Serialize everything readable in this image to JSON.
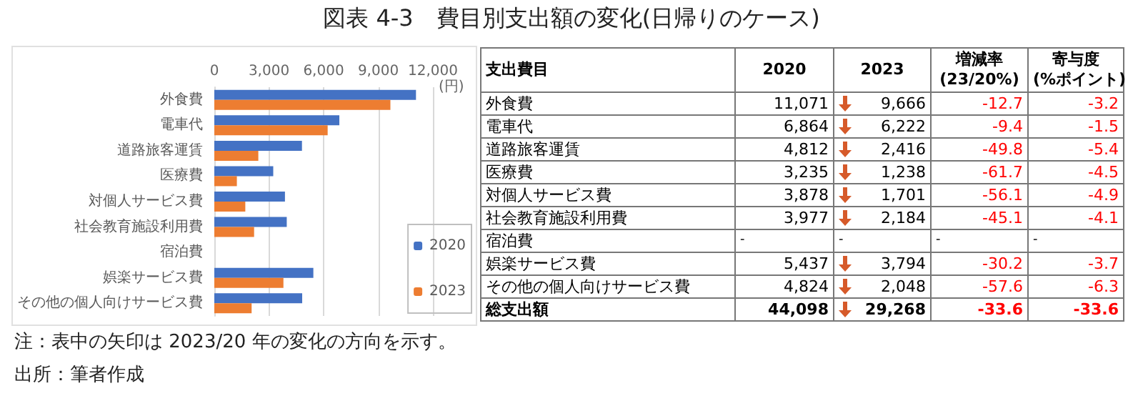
{
  "chart_data": [
    {
      "type": "bar",
      "orientation": "horizontal",
      "title": "図表 4-3　費目別支出額の変化(日帰りのケース)",
      "annotations": [
        "注：表中の矢印は 2023/20 年の変化の方向を示す。",
        "出所：筆者作成"
      ],
      "categories": [
        "外食費",
        "電車代",
        "道路旅客運賃",
        "医療費",
        "対個人サービス費",
        "社会教育施設利用費",
        "宿泊費",
        "娯楽サービス費",
        "その他の個人向けサービス費"
      ],
      "series": [
        {
          "name": "2020",
          "color": "#4472c4",
          "values": [
            11071,
            6864,
            4812,
            3235,
            3878,
            3977,
            null,
            5437,
            4824
          ]
        },
        {
          "name": "2023",
          "color": "#ed7d31",
          "values": [
            9666,
            6222,
            2416,
            1238,
            1701,
            2184,
            null,
            3794,
            2048
          ]
        }
      ],
      "xlim": [
        0,
        12000
      ],
      "xticks": [
        0,
        {
          "value": 3000,
          "label": "3,000"
        },
        {
          "value": 6000,
          "label": "6,000"
        },
        {
          "value": 9000,
          "label": "9,000"
        },
        {
          "value": 12000,
          "label": "12,000"
        }
      ],
      "xlabel": "(円)",
      "grid": "x",
      "legend": "bottom right"
    },
    {
      "type": "other",
      "ylabel": "支出費目",
      "categories": [
        "外食費",
        "電車代",
        "道路旅客運賃",
        "医療費",
        "対個人サービス費",
        "社会教育施設利用費",
        "宿泊費",
        "娯楽サービス費",
        "その他の個人向けサービス費",
        "総支出額"
      ],
      "series": [
        {
          "name": "2020",
          "values": [
            11071,
            6864,
            4812,
            3235,
            3878,
            3977,
            null,
            5437,
            4824,
            44098
          ],
          "value_labels": [
            "11,071",
            "6,864",
            "4,812",
            "3,235",
            "3,878",
            "3,977",
            "-",
            "5,437",
            "4,824",
            "44,098"
          ]
        },
        {
          "name": "2023",
          "values": [
            9666,
            6222,
            2416,
            1238,
            1701,
            2184,
            null,
            3794,
            2048,
            29268
          ],
          "value_labels": [
            "9,666",
            "6,222",
            "2,416",
            "1,238",
            "1,701",
            "2,184",
            "-",
            "3,794",
            "2,048",
            "29,268"
          ]
        },
        {
          "name": "増減率 (23/20%)",
          "values": [
            -12.7,
            -9.4,
            -49.8,
            -61.7,
            -56.1,
            -45.1,
            null,
            -30.2,
            -57.6,
            -33.6
          ],
          "value_labels": [
            "-12.7",
            "-9.4",
            "-49.8",
            "-61.7",
            "-56.1",
            "-45.1",
            "-",
            "-30.2",
            "-57.6",
            "-33.6"
          ]
        },
        {
          "name": "寄与度 (%ポイント)",
          "values": [
            -3.2,
            -1.5,
            -5.4,
            -4.5,
            -4.9,
            -4.1,
            null,
            -3.7,
            -6.3,
            -33.6
          ],
          "value_labels": [
            "-3.2",
            "-1.5",
            "-5.4",
            "-4.5",
            "-4.9",
            "-4.1",
            "-",
            "-3.7",
            "-6.3",
            "-33.6"
          ]
        }
      ]
    }
  ]
}
